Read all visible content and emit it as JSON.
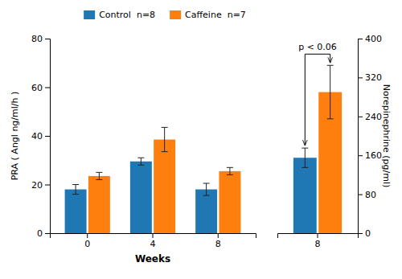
{
  "chart_data": [
    {
      "type": "bar",
      "categories": [
        "0",
        "4",
        "8"
      ],
      "series": [
        {
          "name": "Control  n=8",
          "values": [
            18,
            29.5,
            18
          ],
          "errors": [
            2.0,
            1.5,
            2.5
          ]
        },
        {
          "name": "Caffeine  n=7",
          "values": [
            23.5,
            38.5,
            25.5
          ],
          "errors": [
            1.5,
            5.0,
            1.5
          ]
        }
      ],
      "xlabel": "Weeks",
      "ylabel": "PRA ( Angl ng/ml/h )",
      "ylim": [
        0,
        80
      ],
      "yticks": [
        0,
        20,
        40,
        60,
        80
      ],
      "legend": "top"
    },
    {
      "type": "bar",
      "categories": [
        "8"
      ],
      "series": [
        {
          "values": [
            155
          ],
          "errors": [
            20
          ]
        },
        {
          "values": [
            290
          ],
          "errors": [
            55
          ]
        }
      ],
      "ylabel": "Norepinephrine (pg/ml)",
      "ylim": [
        0,
        400
      ],
      "yticks": [
        0,
        80,
        160,
        240,
        320,
        400
      ],
      "annotation": "p < 0.06"
    }
  ]
}
